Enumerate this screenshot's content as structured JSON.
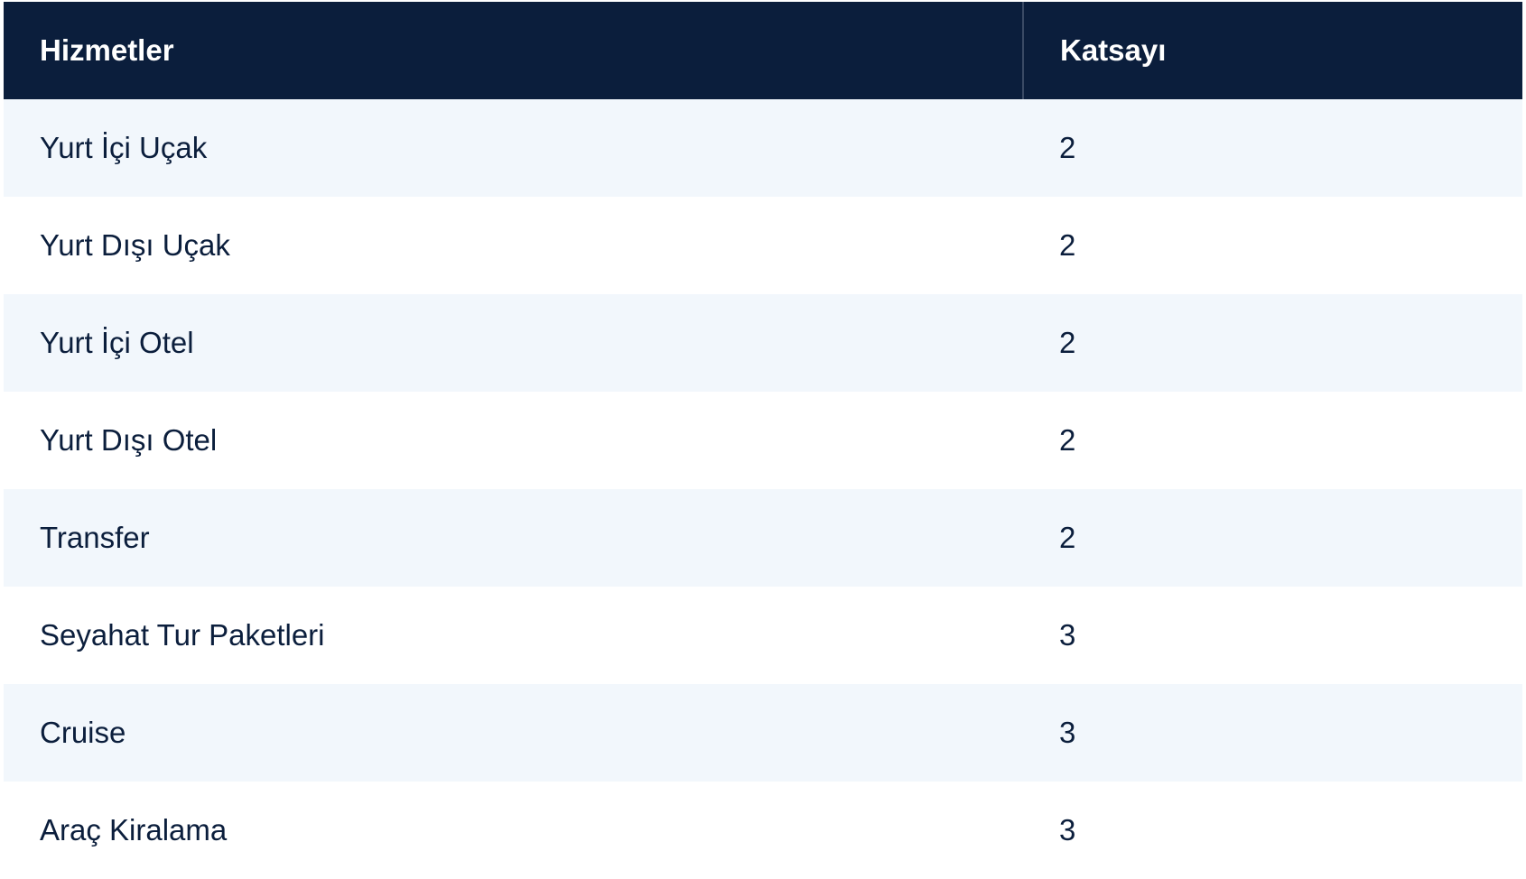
{
  "table": {
    "headers": {
      "service": "Hizmetler",
      "coefficient": "Katsayı"
    },
    "rows": [
      {
        "service": "Yurt İçi Uçak",
        "coefficient": "2"
      },
      {
        "service": "Yurt Dışı Uçak",
        "coefficient": "2"
      },
      {
        "service": "Yurt İçi Otel",
        "coefficient": "2"
      },
      {
        "service": "Yurt Dışı Otel",
        "coefficient": "2"
      },
      {
        "service": "Transfer",
        "coefficient": "2"
      },
      {
        "service": "Seyahat Tur Paketleri",
        "coefficient": "3"
      },
      {
        "service": "Cruise",
        "coefficient": "3"
      },
      {
        "service": "Araç Kiralama",
        "coefficient": "3"
      }
    ]
  },
  "colors": {
    "header_bg": "#0b1e3c",
    "stripe_bg": "#f2f7fc",
    "text": "#0b1e3c"
  }
}
